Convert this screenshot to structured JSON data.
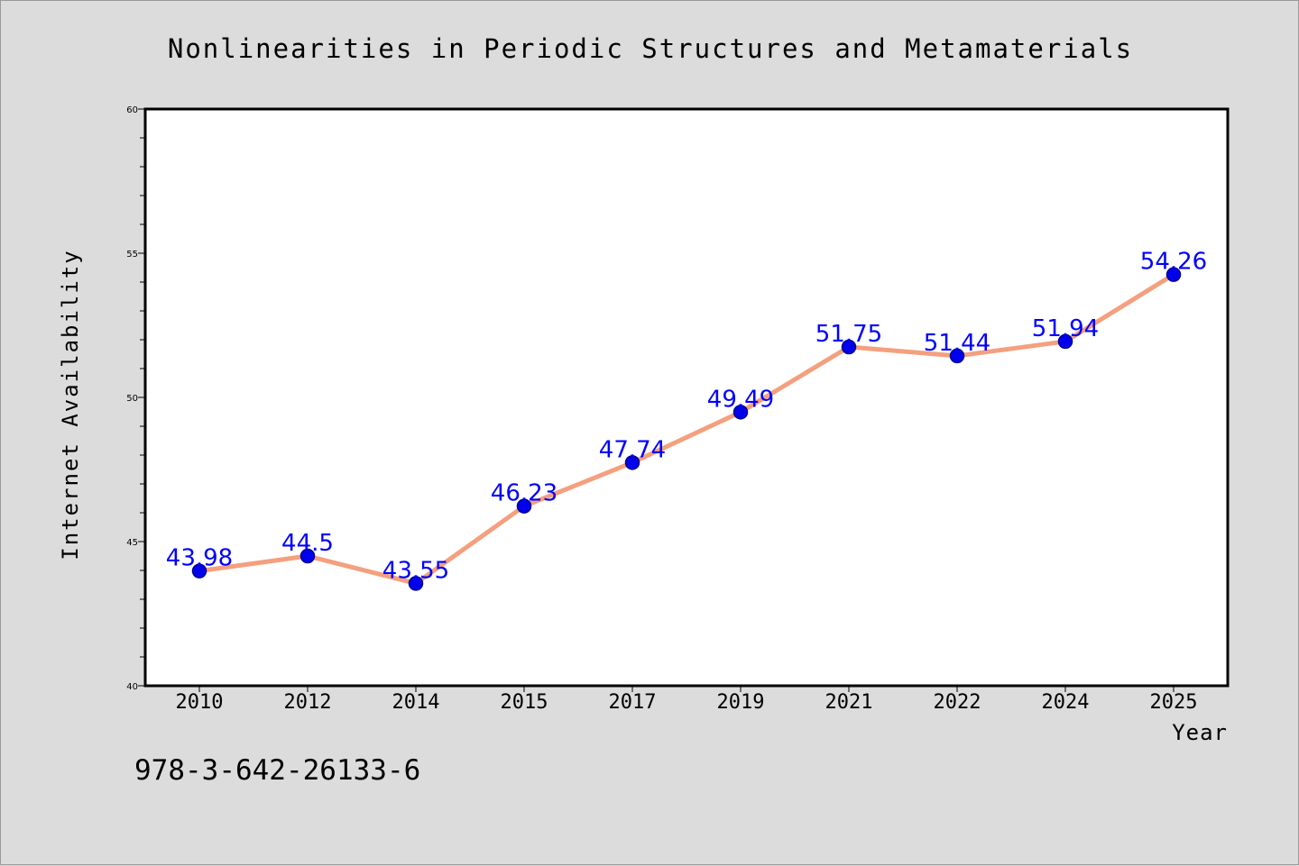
{
  "chart_data": {
    "type": "line",
    "title": "Nonlinearities in Periodic Structures and Metamaterials",
    "xlabel": "Year",
    "ylabel": "Internet Availability",
    "categories": [
      "2010",
      "2012",
      "2014",
      "2015",
      "2017",
      "2019",
      "2021",
      "2022",
      "2024",
      "2025"
    ],
    "series": [
      {
        "values": [
          43.98,
          44.5,
          43.55,
          46.23,
          47.74,
          49.49,
          51.75,
          51.44,
          51.94,
          54.26
        ]
      }
    ],
    "data_labels": [
      "43.98",
      "44.5",
      "43.55",
      "46.23",
      "47.74",
      "49.49",
      "51.75",
      "51.44",
      "51.94",
      "54.26"
    ],
    "ylim": [
      40,
      60
    ],
    "y_ticks": [
      "40",
      "45",
      "50",
      "55",
      "60"
    ],
    "y_minor_step": 1,
    "grid": false,
    "legend": "none",
    "annotation": "978-3-642-26133-6",
    "colors": {
      "background": "#dcdcdc",
      "plot_background": "#ffffff",
      "line": "#f4a07e",
      "marker": "#0000ee",
      "marker_edge": "#00008b",
      "data_label": "#0000ff",
      "text": "#000000"
    }
  }
}
